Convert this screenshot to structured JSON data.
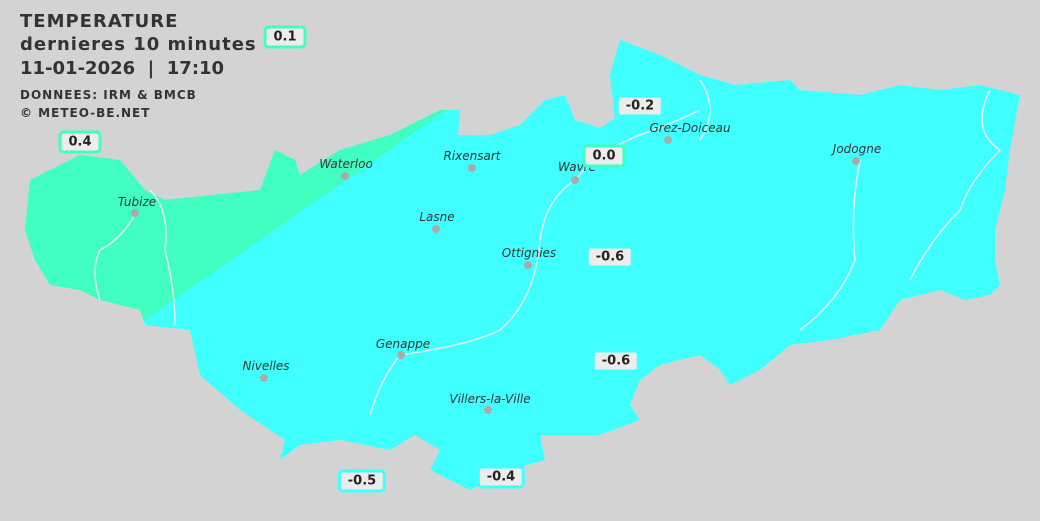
{
  "header": {
    "title": "TEMPERATURE",
    "period": "dernieres 10 minutes",
    "datetime": "11-01-2026  |  17:10",
    "source": "DONNEES: IRM & BMCB",
    "copyright": "© METEO-BE.NET"
  },
  "colors": {
    "background": "#d3d3d3",
    "zone_cold": "#40ffff",
    "zone_mild": "#40ffc0",
    "badge_fill": "#ececec"
  },
  "cities": [
    {
      "name": "Waterloo"
    },
    {
      "name": "Rixensart"
    },
    {
      "name": "Wavre"
    },
    {
      "name": "Grez-Doiceau"
    },
    {
      "name": "Jodogne"
    },
    {
      "name": "Tubize"
    },
    {
      "name": "Lasne"
    },
    {
      "name": "Ottignies"
    },
    {
      "name": "Genappe"
    },
    {
      "name": "Nivelles"
    },
    {
      "name": "Villers-la-Ville"
    }
  ],
  "readings": [
    {
      "value": "0.1",
      "color": "#40ffc0"
    },
    {
      "value": "0.4",
      "color": "#40ffc0"
    },
    {
      "value": "-0.2",
      "color": "#40ffff"
    },
    {
      "value": "0.0",
      "color": "#40ffc0"
    },
    {
      "value": "-0.6",
      "color": "#40ffff"
    },
    {
      "value": "-0.6",
      "color": "#40ffff"
    },
    {
      "value": "-0.5",
      "color": "#40ffff"
    },
    {
      "value": "-0.4",
      "color": "#40ffff"
    }
  ]
}
